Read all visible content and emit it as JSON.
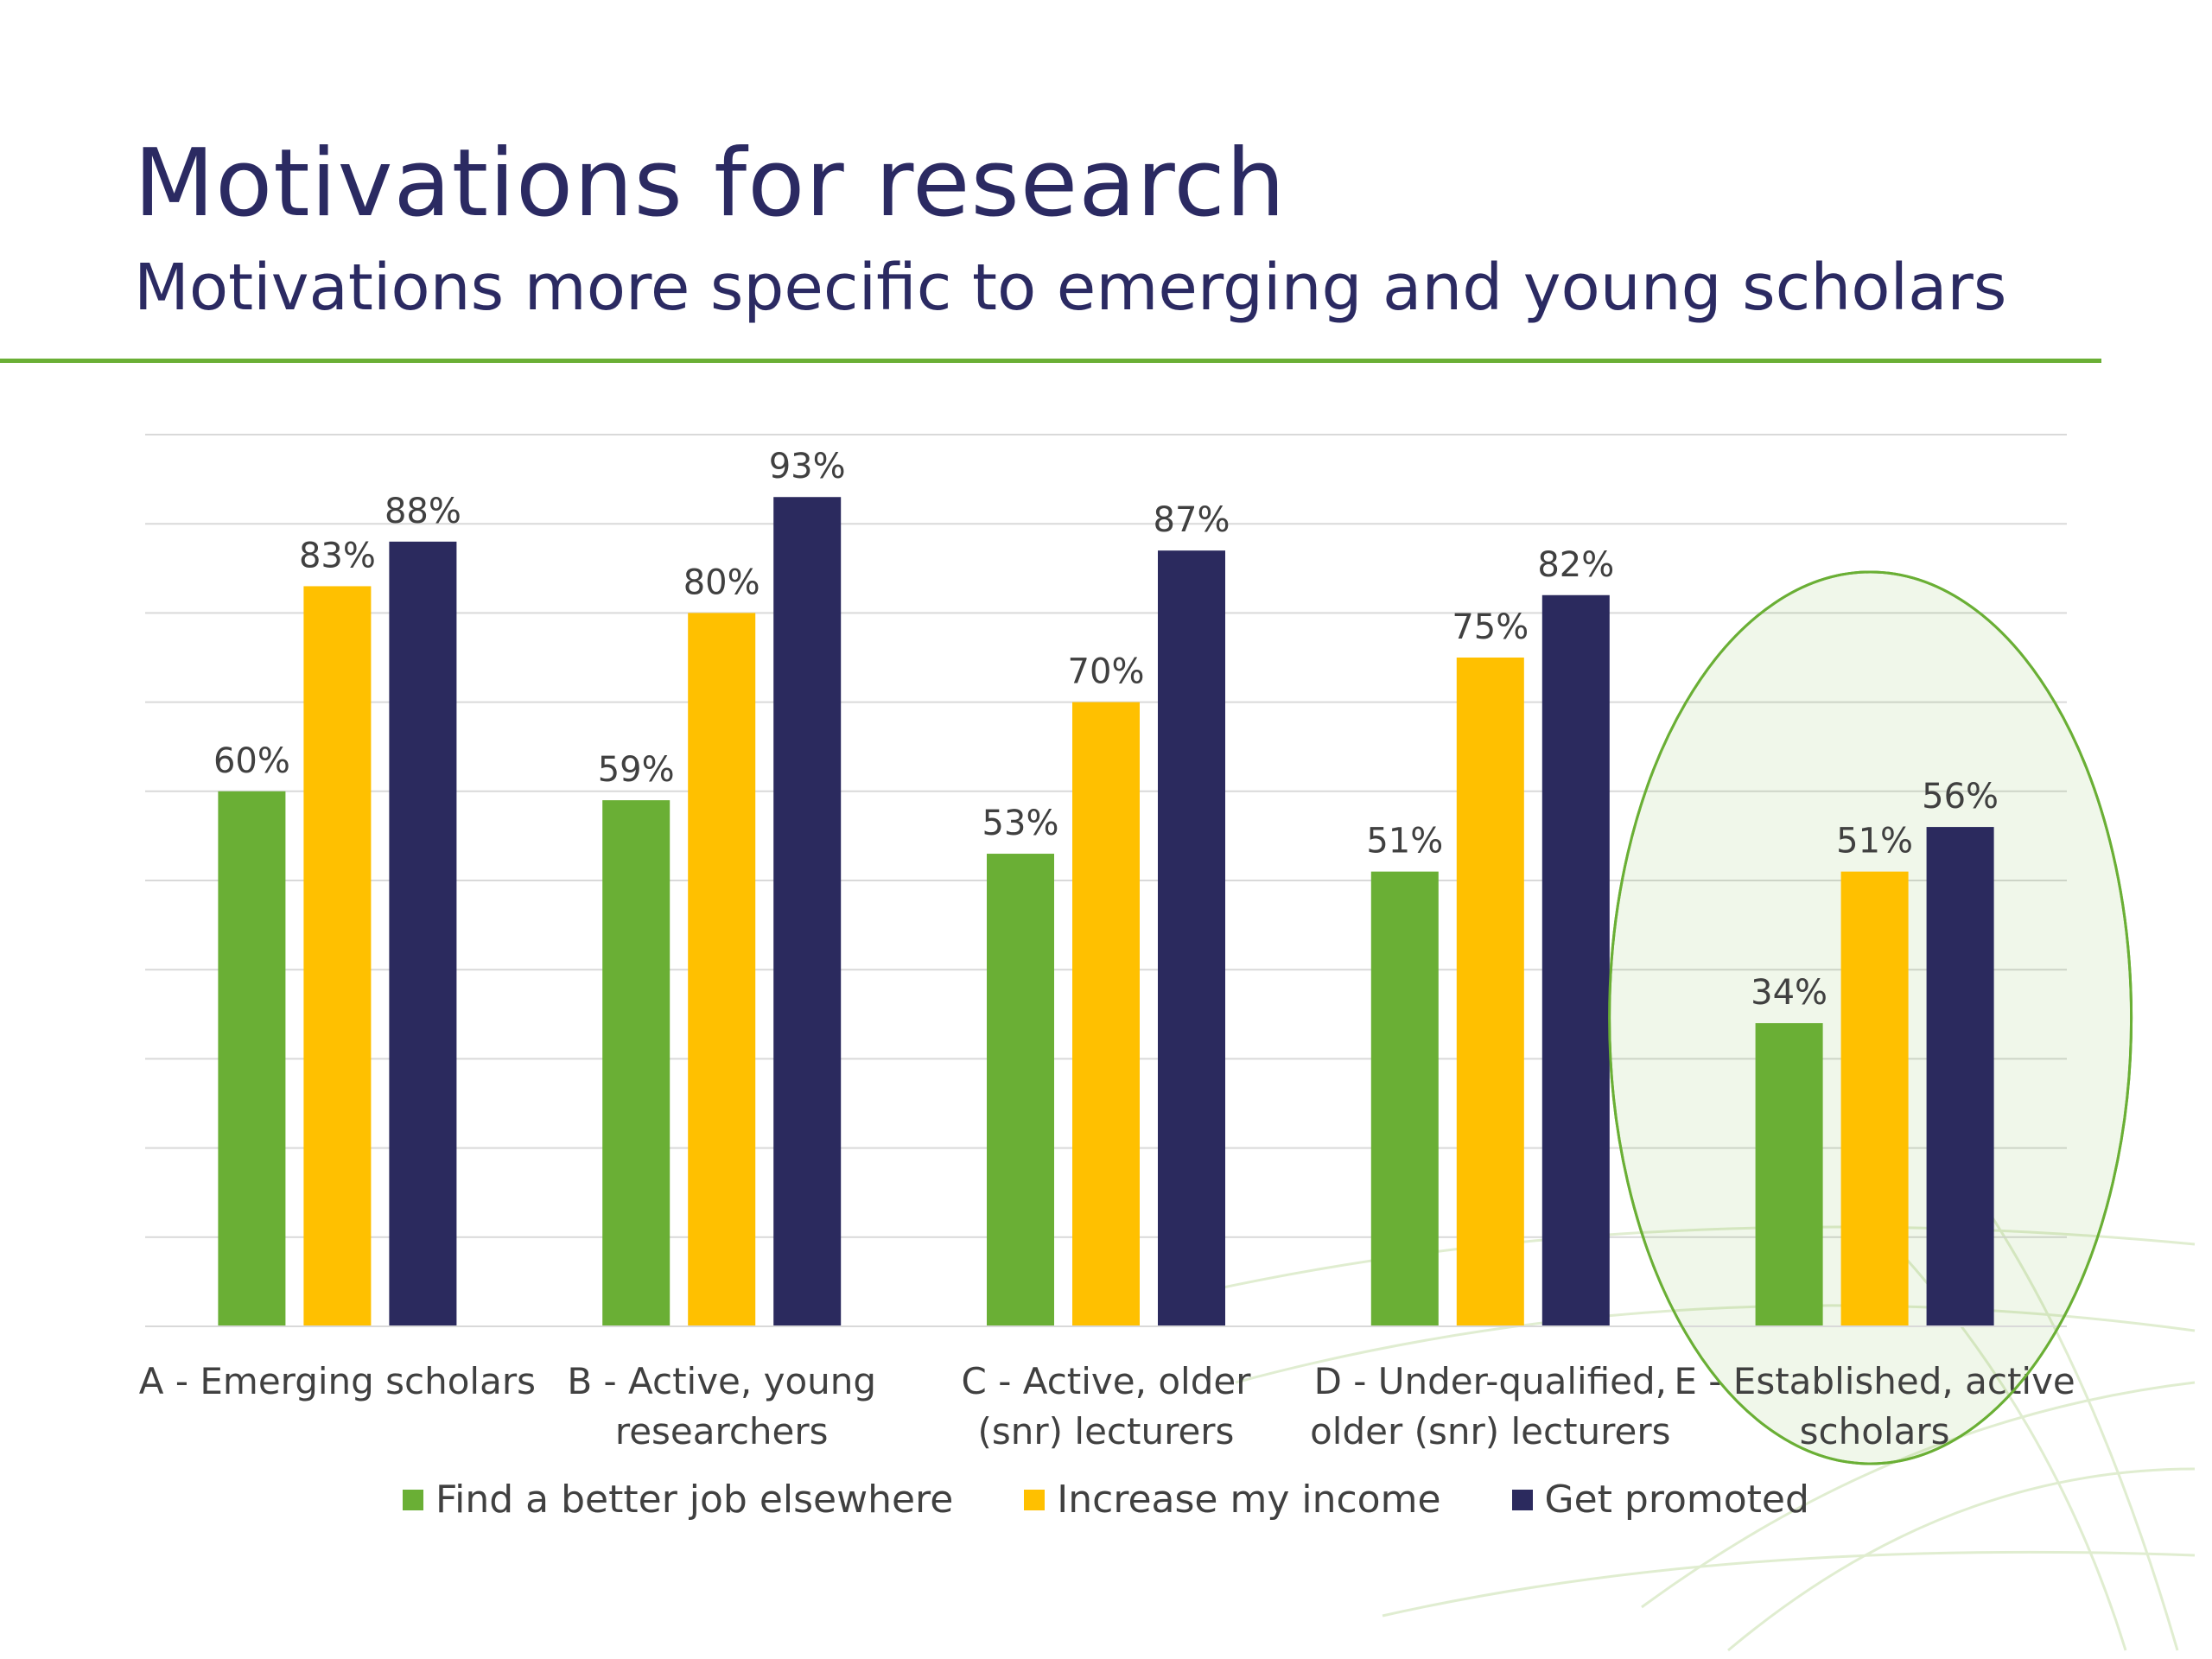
{
  "slide": {
    "title": "Motivations for research",
    "subtitle": "Motivations more specific to emerging and young scholars"
  },
  "colors": {
    "title": "#2b2a62",
    "rule": "#6aaf35",
    "highlight": "#6aaf35"
  },
  "chart_data": {
    "type": "bar",
    "categories": [
      [
        "A - Emerging scholars"
      ],
      [
        "B - Active, young",
        "researchers"
      ],
      [
        "C - Active, older",
        "(snr) lecturers"
      ],
      [
        "D - Under-qualified,",
        "older (snr) lecturers"
      ],
      [
        "E - Established, active",
        "scholars"
      ]
    ],
    "series": [
      {
        "name": "Find a better job elsewhere",
        "color": "#6aaf35",
        "values": [
          60,
          59,
          53,
          51,
          34
        ]
      },
      {
        "name": "Increase my income",
        "color": "#ffc000",
        "values": [
          83,
          80,
          70,
          75,
          51
        ]
      },
      {
        "name": "Get promoted",
        "color": "#2b2a5e",
        "values": [
          88,
          93,
          87,
          82,
          56
        ]
      }
    ],
    "value_suffix": "%",
    "ylim": [
      0,
      100
    ],
    "grid": true,
    "legend": "bottom",
    "highlighted_category": "E - Established, active scholars"
  }
}
